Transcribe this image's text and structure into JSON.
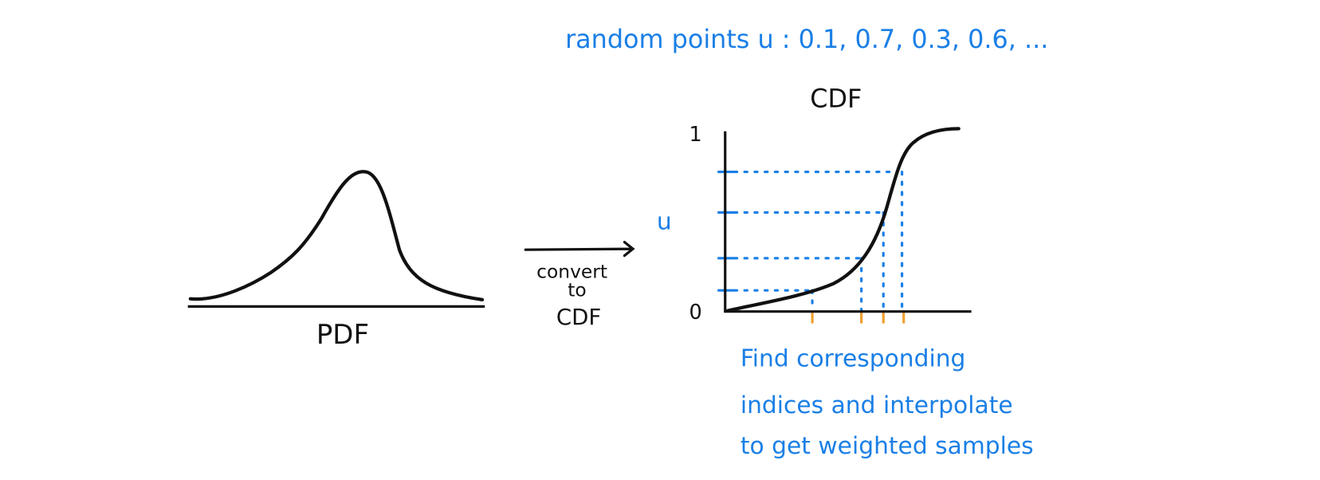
{
  "title": "random points u : 0.1, 0.7, 0.3, 0.6, ...",
  "pdf": {
    "label": "PDF"
  },
  "arrow": {
    "lines": [
      "convert",
      "to",
      "CDF"
    ]
  },
  "cdf": {
    "title": "CDF",
    "y_top": "1",
    "y_bottom": "0",
    "y_axis_label": "u"
  },
  "note": {
    "lines": [
      "Find corresponding",
      "indices and interpolate",
      "to get weighted samples"
    ]
  }
}
